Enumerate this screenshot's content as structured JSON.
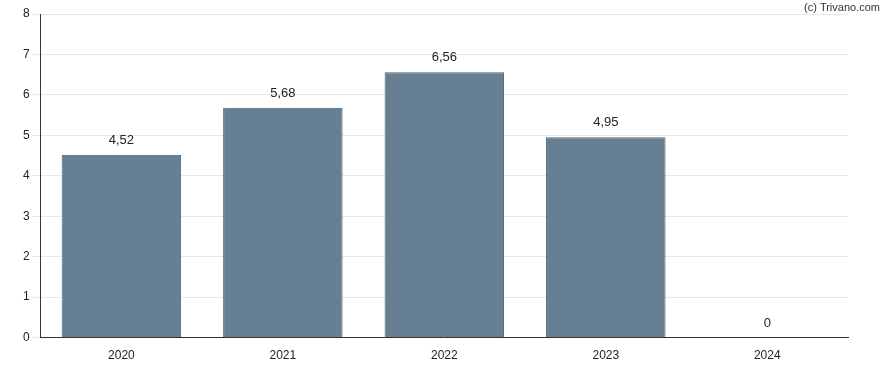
{
  "chart_data": {
    "type": "bar",
    "categories": [
      "2020",
      "2021",
      "2022",
      "2023",
      "2024"
    ],
    "values": [
      4.52,
      5.68,
      6.56,
      4.95,
      0
    ],
    "value_labels": [
      "4,52",
      "5,68",
      "6,56",
      "4,95",
      "0"
    ],
    "data_labels": true,
    "color": "#667f93",
    "ylim": [
      0,
      8
    ],
    "yticks": [
      0,
      1,
      2,
      3,
      4,
      5,
      6,
      7,
      8
    ],
    "grid": true,
    "annotations": [
      "(c) Trivano.com"
    ]
  }
}
